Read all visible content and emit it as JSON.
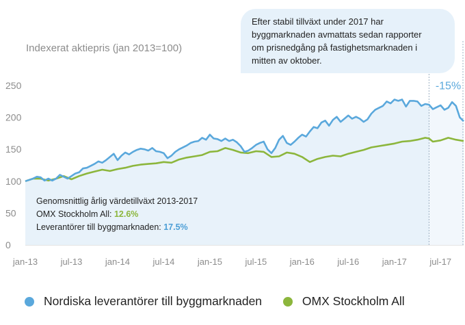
{
  "colors": {
    "nordic": "#5aa8dc",
    "omx": "#8cb63c",
    "fill": "#e8f2fa",
    "callout_bg": "#e6f1fa",
    "change_label": "#5aa8dc"
  },
  "callout": {
    "lines": [
      "Efter stabil tillväxt under 2017 har",
      "byggmarknaden avmattats sedan rapporter",
      "om prisnedgång på fastighetsmarknaden i",
      "mitten av oktober."
    ]
  },
  "stats": {
    "heading": "Genomsnittlig årlig värdetillväxt 2013-2017",
    "omx_label": "OMX Stockholm All: ",
    "omx_value": "12.6%",
    "nordic_label": "Leverantörer till byggmarknaden: ",
    "nordic_value": "17.5%"
  },
  "legend": {
    "nordic": "Nordiska leverantörer till byggmarknaden",
    "omx": "OMX Stockholm All"
  },
  "chart_data": {
    "type": "line",
    "ylabel": "Indexerat aktiepris (jan 2013=100)",
    "ylim": [
      0,
      250
    ],
    "yticks": [
      0,
      50,
      100,
      150,
      200,
      250
    ],
    "x_tick_labels": [
      "jan-13",
      "jul-13",
      "jan-14",
      "jul-14",
      "jan-15",
      "jul-15",
      "jan-16",
      "jul-16",
      "jan-17",
      "jul-17"
    ],
    "x_unit": "month index, 0 = jan-13",
    "xlim": [
      0,
      57
    ],
    "highlight_start_x": 52.5,
    "annotation": {
      "text": "-15%",
      "x": 55,
      "y": 244
    },
    "series": [
      {
        "name": "Nordiska leverantörer till byggmarknaden",
        "points": [
          [
            0,
            100
          ],
          [
            1,
            104
          ],
          [
            1.5,
            107
          ],
          [
            2,
            106
          ],
          [
            2.5,
            101
          ],
          [
            3,
            104
          ],
          [
            3.5,
            101
          ],
          [
            4,
            104
          ],
          [
            4.5,
            110
          ],
          [
            5,
            107
          ],
          [
            5.5,
            104
          ],
          [
            6,
            108
          ],
          [
            6.5,
            112
          ],
          [
            7,
            114
          ],
          [
            7.5,
            120
          ],
          [
            8,
            121
          ],
          [
            8.5,
            124
          ],
          [
            9,
            127
          ],
          [
            9.5,
            131
          ],
          [
            10,
            129
          ],
          [
            10.5,
            133
          ],
          [
            11,
            138
          ],
          [
            11.5,
            143
          ],
          [
            12,
            133
          ],
          [
            12.5,
            140
          ],
          [
            13,
            145
          ],
          [
            13.5,
            142
          ],
          [
            14,
            146
          ],
          [
            14.5,
            149
          ],
          [
            15,
            151
          ],
          [
            15.5,
            150
          ],
          [
            16,
            148
          ],
          [
            16.5,
            152
          ],
          [
            17,
            147
          ],
          [
            17.5,
            146
          ],
          [
            18,
            144
          ],
          [
            18.5,
            136
          ],
          [
            19,
            140
          ],
          [
            19.5,
            146
          ],
          [
            20,
            150
          ],
          [
            20.5,
            153
          ],
          [
            21,
            156
          ],
          [
            21.5,
            160
          ],
          [
            22,
            162
          ],
          [
            22.5,
            163
          ],
          [
            23,
            168
          ],
          [
            23.5,
            165
          ],
          [
            24,
            173
          ],
          [
            24.5,
            167
          ],
          [
            25,
            166
          ],
          [
            25.5,
            163
          ],
          [
            26,
            167
          ],
          [
            26.5,
            163
          ],
          [
            27,
            165
          ],
          [
            27.5,
            161
          ],
          [
            28,
            155
          ],
          [
            28.5,
            146
          ],
          [
            29,
            148
          ],
          [
            29.5,
            152
          ],
          [
            30,
            157
          ],
          [
            30.5,
            160
          ],
          [
            31,
            162
          ],
          [
            31.5,
            150
          ],
          [
            32,
            144
          ],
          [
            32.5,
            152
          ],
          [
            33,
            165
          ],
          [
            33.5,
            171
          ],
          [
            34,
            160
          ],
          [
            34.5,
            157
          ],
          [
            35,
            162
          ],
          [
            35.5,
            168
          ],
          [
            36,
            173
          ],
          [
            36.5,
            170
          ],
          [
            37,
            178
          ],
          [
            37.5,
            185
          ],
          [
            38,
            183
          ],
          [
            38.5,
            192
          ],
          [
            39,
            195
          ],
          [
            39.5,
            187
          ],
          [
            40,
            196
          ],
          [
            40.5,
            201
          ],
          [
            41,
            193
          ],
          [
            41.5,
            198
          ],
          [
            42,
            203
          ],
          [
            42.5,
            198
          ],
          [
            43,
            201
          ],
          [
            43.5,
            198
          ],
          [
            44,
            193
          ],
          [
            44.5,
            197
          ],
          [
            45,
            206
          ],
          [
            45.5,
            212
          ],
          [
            46,
            215
          ],
          [
            46.5,
            218
          ],
          [
            47,
            225
          ],
          [
            47.5,
            222
          ],
          [
            48,
            228
          ],
          [
            48.5,
            226
          ],
          [
            49,
            228
          ],
          [
            49.5,
            217
          ],
          [
            50,
            226
          ],
          [
            50.5,
            226
          ],
          [
            51,
            225
          ],
          [
            51.5,
            218
          ],
          [
            52,
            221
          ],
          [
            52.5,
            220
          ],
          [
            53,
            213
          ],
          [
            53.5,
            216
          ],
          [
            54,
            219
          ],
          [
            54.5,
            212
          ],
          [
            55,
            215
          ],
          [
            55.5,
            224
          ],
          [
            56,
            218
          ],
          [
            56.5,
            200
          ],
          [
            57,
            194
          ]
        ]
      },
      {
        "name": "OMX Stockholm All",
        "points": [
          [
            0,
            100
          ],
          [
            1,
            104
          ],
          [
            2,
            104
          ],
          [
            3,
            101
          ],
          [
            4,
            104
          ],
          [
            5,
            108
          ],
          [
            6,
            103
          ],
          [
            7,
            108
          ],
          [
            8,
            112
          ],
          [
            9,
            115
          ],
          [
            10,
            118
          ],
          [
            11,
            116
          ],
          [
            12,
            119
          ],
          [
            13,
            121
          ],
          [
            14,
            124
          ],
          [
            15,
            126
          ],
          [
            16,
            127
          ],
          [
            17,
            128
          ],
          [
            18,
            130
          ],
          [
            19,
            129
          ],
          [
            20,
            134
          ],
          [
            21,
            137
          ],
          [
            22,
            139
          ],
          [
            23,
            141
          ],
          [
            24,
            146
          ],
          [
            25,
            147
          ],
          [
            26,
            152
          ],
          [
            27,
            149
          ],
          [
            28,
            145
          ],
          [
            29,
            144
          ],
          [
            30,
            147
          ],
          [
            31,
            146
          ],
          [
            32,
            138
          ],
          [
            33,
            139
          ],
          [
            34,
            145
          ],
          [
            35,
            143
          ],
          [
            36,
            138
          ],
          [
            37,
            130
          ],
          [
            38,
            135
          ],
          [
            39,
            138
          ],
          [
            40,
            140
          ],
          [
            41,
            139
          ],
          [
            42,
            143
          ],
          [
            43,
            146
          ],
          [
            44,
            149
          ],
          [
            45,
            153
          ],
          [
            46,
            155
          ],
          [
            47,
            157
          ],
          [
            48,
            159
          ],
          [
            49,
            162
          ],
          [
            50,
            163
          ],
          [
            51,
            165
          ],
          [
            52,
            168
          ],
          [
            52.5,
            167
          ],
          [
            53,
            162
          ],
          [
            54,
            164
          ],
          [
            55,
            168
          ],
          [
            56,
            165
          ],
          [
            57,
            163
          ]
        ]
      }
    ]
  }
}
